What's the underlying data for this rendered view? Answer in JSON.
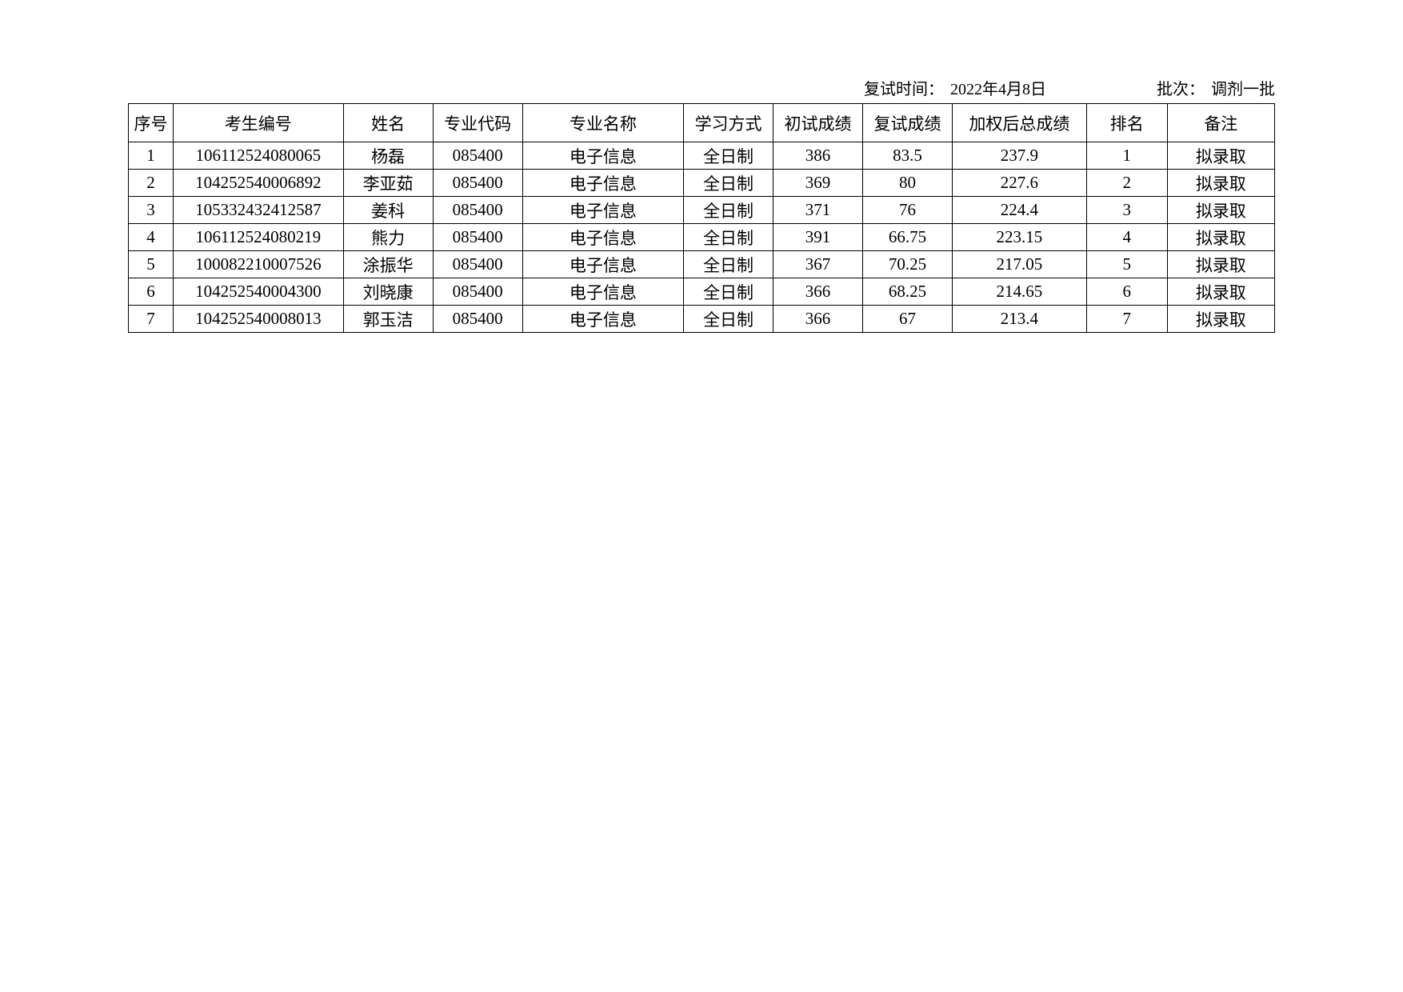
{
  "header": {
    "date_label": "复试时间：",
    "date_value": "2022年4月8日",
    "batch_label": "批次：",
    "batch_value": "调剂一批"
  },
  "columns": {
    "seq": "序号",
    "id": "考生编号",
    "name": "姓名",
    "code": "专业代码",
    "major": "专业名称",
    "mode": "学习方式",
    "score1": "初试成绩",
    "score2": "复试成绩",
    "total": "加权后总成绩",
    "rank": "排名",
    "note": "备注"
  },
  "rows": [
    {
      "seq": "1",
      "id": "106112524080065",
      "name": "杨磊",
      "code": "085400",
      "major": "电子信息",
      "mode": "全日制",
      "score1": "386",
      "score2": "83.5",
      "total": "237.9",
      "rank": "1",
      "note": "拟录取"
    },
    {
      "seq": "2",
      "id": "104252540006892",
      "name": "李亚茹",
      "code": "085400",
      "major": "电子信息",
      "mode": "全日制",
      "score1": "369",
      "score2": "80",
      "total": "227.6",
      "rank": "2",
      "note": "拟录取"
    },
    {
      "seq": "3",
      "id": "105332432412587",
      "name": "姜科",
      "code": "085400",
      "major": "电子信息",
      "mode": "全日制",
      "score1": "371",
      "score2": "76",
      "total": "224.4",
      "rank": "3",
      "note": "拟录取"
    },
    {
      "seq": "4",
      "id": "106112524080219",
      "name": "熊力",
      "code": "085400",
      "major": "电子信息",
      "mode": "全日制",
      "score1": "391",
      "score2": "66.75",
      "total": "223.15",
      "rank": "4",
      "note": "拟录取"
    },
    {
      "seq": "5",
      "id": "100082210007526",
      "name": "涂振华",
      "code": "085400",
      "major": "电子信息",
      "mode": "全日制",
      "score1": "367",
      "score2": "70.25",
      "total": "217.05",
      "rank": "5",
      "note": "拟录取"
    },
    {
      "seq": "6",
      "id": "104252540004300",
      "name": "刘晓康",
      "code": "085400",
      "major": "电子信息",
      "mode": "全日制",
      "score1": "366",
      "score2": "68.25",
      "total": "214.65",
      "rank": "6",
      "note": "拟录取"
    },
    {
      "seq": "7",
      "id": "104252540008013",
      "name": "郭玉洁",
      "code": "085400",
      "major": "电子信息",
      "mode": "全日制",
      "score1": "366",
      "score2": "67",
      "total": "213.4",
      "rank": "7",
      "note": "拟录取"
    }
  ],
  "styling": {
    "background_color": "#ffffff",
    "border_color": "#000000",
    "text_color": "#000000",
    "header_row_height": 48,
    "data_row_height": 34,
    "font_size": 21,
    "header_font_size": 20
  }
}
